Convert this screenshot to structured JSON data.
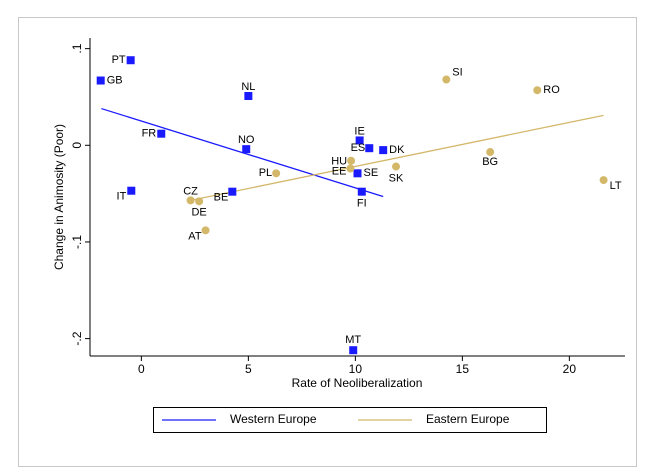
{
  "chart_data": {
    "type": "scatter",
    "x_label": "Rate of Neoliberalization",
    "y_label": "Change in Animosity (Poor)",
    "xlim": [
      -2.4,
      22.6
    ],
    "ylim": [
      -0.218,
      0.111
    ],
    "xticks": [
      0,
      5,
      10,
      15,
      20
    ],
    "yticks": [
      {
        "value": -0.2,
        "label": "-.2"
      },
      {
        "value": -0.1,
        "label": "-.1"
      },
      0,
      {
        "value": 0.1,
        "label": ".1"
      }
    ],
    "series": [
      {
        "name": "Western Europe",
        "color": "#1a1aff",
        "marker": "square",
        "labels": [
          "PT",
          "GB",
          "NL",
          "FR",
          "NO",
          "IE",
          "ES",
          "DK",
          "SE",
          "IT",
          "BE",
          "FI",
          "MT"
        ],
        "x": [
          -0.5,
          -1.9,
          5.0,
          0.93,
          4.9,
          10.2,
          10.65,
          11.3,
          10.1,
          -0.47,
          4.25,
          10.3,
          9.9
        ],
        "values": [
          0.088,
          0.067,
          0.051,
          0.012,
          -0.004,
          0.005,
          -0.003,
          -0.005,
          -0.029,
          -0.047,
          -0.048,
          -0.048,
          -0.212
        ],
        "fit": {
          "x": [
            -1.87,
            11.3
          ],
          "values": [
            0.038,
            -0.053
          ]
        }
      },
      {
        "name": "Eastern Europe",
        "color": "#d4b86a",
        "marker": "circle",
        "labels": [
          "SI",
          "RO",
          "BG",
          "HU",
          "EE",
          "SK",
          "PL",
          "LT",
          "CZ",
          "DE",
          "AT"
        ],
        "x": [
          14.25,
          18.5,
          16.3,
          9.8,
          9.77,
          11.9,
          6.3,
          21.6,
          2.3,
          2.7,
          3.0
        ],
        "values": [
          0.068,
          0.057,
          -0.007,
          -0.016,
          -0.024,
          -0.022,
          -0.029,
          -0.036,
          -0.057,
          -0.058,
          -0.088
        ],
        "fit": {
          "x": [
            2.3,
            21.6
          ],
          "values": [
            -0.057,
            0.031
          ]
        }
      }
    ]
  }
}
